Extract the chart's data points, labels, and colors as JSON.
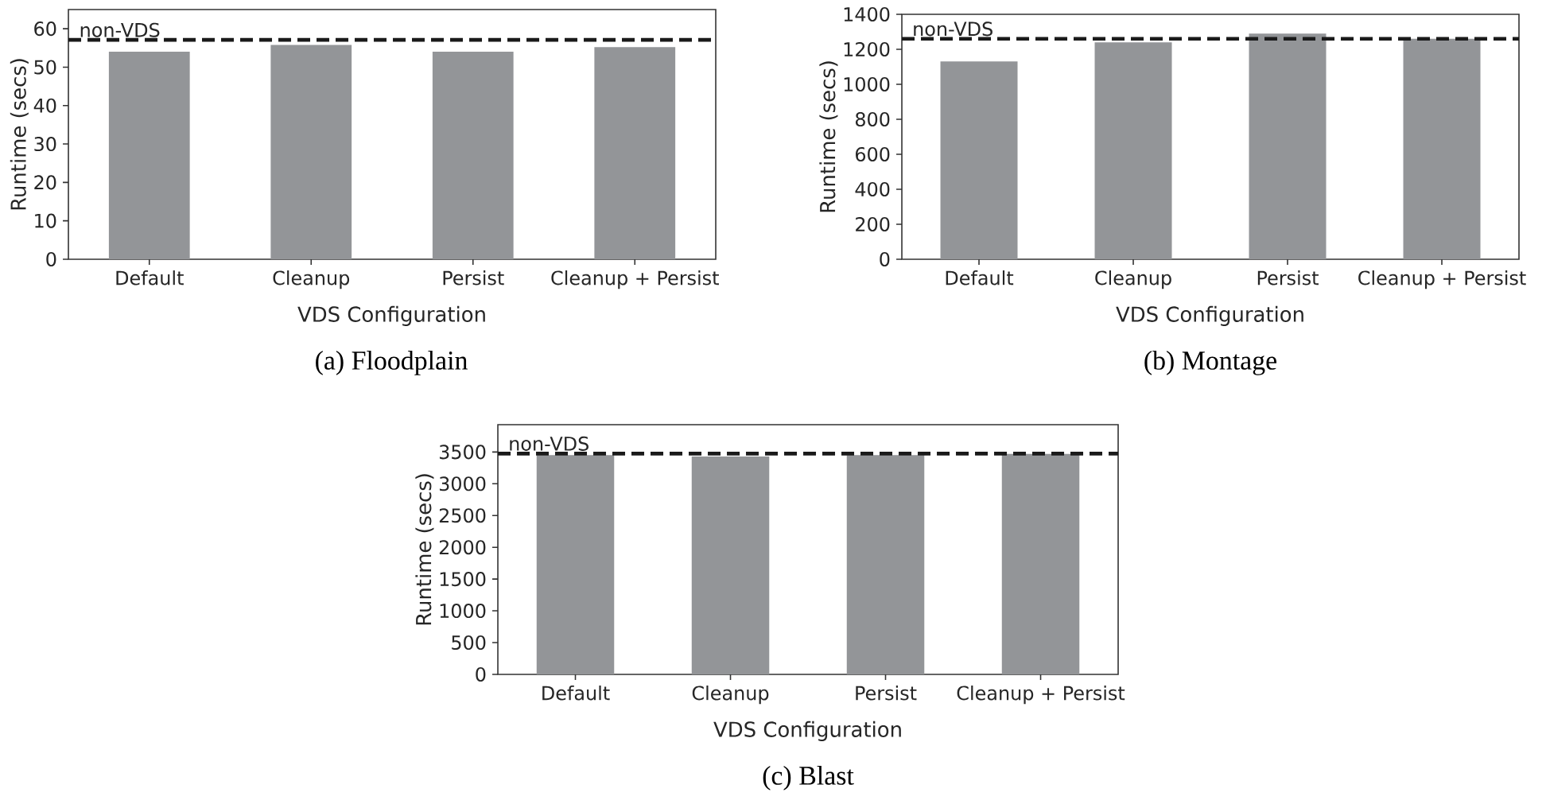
{
  "chart_data": [
    {
      "type": "bar",
      "title": "(a) Floodplain",
      "xlabel": "VDS Configuration",
      "ylabel": "Runtime (secs)",
      "categories": [
        "Default",
        "Cleanup",
        "Persist",
        "Cleanup + Persist"
      ],
      "values": [
        54,
        55.8,
        54,
        55.2
      ],
      "color": "#939598",
      "ylim": [
        0,
        65
      ],
      "yticks": [
        0,
        10,
        20,
        30,
        40,
        50,
        60
      ],
      "ref_lines": [
        {
          "axis": "y",
          "value": 57.1,
          "label": "non-VDS",
          "color": "#1a1a1a",
          "line_style": "dashed"
        }
      ]
    },
    {
      "type": "bar",
      "title": "(b) Montage",
      "xlabel": "VDS Configuration",
      "ylabel": "Runtime (secs)",
      "categories": [
        "Default",
        "Cleanup",
        "Persist",
        "Cleanup + Persist"
      ],
      "values": [
        1130,
        1240,
        1290,
        1260
      ],
      "color": "#939598",
      "ylim": [
        0,
        1400
      ],
      "yticks": [
        0,
        200,
        400,
        600,
        800,
        1000,
        1200,
        1400
      ],
      "ref_lines": [
        {
          "axis": "y",
          "value": 1260,
          "label": "non-VDS",
          "color": "#1a1a1a",
          "line_style": "dashed"
        }
      ]
    },
    {
      "type": "bar",
      "title": "(c) Blast",
      "xlabel": "VDS Configuration",
      "ylabel": "Runtime (secs)",
      "categories": [
        "Default",
        "Cleanup",
        "Persist",
        "Cleanup + Persist"
      ],
      "values": [
        3450,
        3430,
        3450,
        3470
      ],
      "color": "#939598",
      "ylim": [
        0,
        3930
      ],
      "yticks": [
        0,
        500,
        1000,
        1500,
        2000,
        2500,
        3000,
        3500
      ],
      "ref_lines": [
        {
          "axis": "y",
          "value": 3475,
          "label": "non-VDS",
          "color": "#1a1a1a",
          "line_style": "dashed"
        }
      ]
    }
  ]
}
